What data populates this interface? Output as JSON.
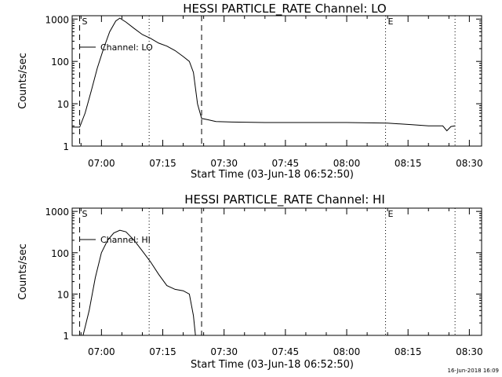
{
  "chart_data": [
    {
      "type": "line",
      "title": "HESSI PARTICLE_RATE Channel: LO",
      "xlabel": "Start Time (03-Jun-18 06:52:50)",
      "ylabel": "Counts/sec",
      "y_scale": "log",
      "x_ticks": [
        "07:00",
        "07:15",
        "07:30",
        "07:45",
        "08:00",
        "08:15",
        "08:30"
      ],
      "y_ticks": [
        "1",
        "10",
        "100",
        "1000"
      ],
      "xlim": [
        "06:52:50",
        "08:33:00"
      ],
      "ylim": [
        1,
        1200
      ],
      "legend": {
        "label": "Channel: LO",
        "placement": "top-left"
      },
      "markers": [
        {
          "time": "06:54:40",
          "style": "dashed",
          "label": "S"
        },
        {
          "time": "07:11:40",
          "style": "dotted",
          "label": ""
        },
        {
          "time": "07:24:30",
          "style": "dashed",
          "label": ""
        },
        {
          "time": "08:09:30",
          "style": "dotted",
          "label": "E"
        },
        {
          "time": "08:26:30",
          "style": "dotted",
          "label": ""
        }
      ],
      "series": [
        {
          "name": "Channel: LO",
          "x": [
            "06:52:50",
            "06:54:40",
            "06:56:00",
            "06:57:30",
            "06:59:00",
            "07:00:30",
            "07:02:00",
            "07:03:30",
            "07:04:30",
            "07:06:00",
            "07:08:00",
            "07:10:00",
            "07:12:00",
            "07:14:00",
            "07:16:00",
            "07:18:00",
            "07:20:00",
            "07:21:30",
            "07:22:30",
            "07:23:30",
            "07:24:30",
            "07:26:00",
            "07:28:00",
            "07:32:00",
            "07:40:00",
            "07:50:00",
            "08:00:00",
            "08:10:00",
            "08:16:00",
            "08:20:00",
            "08:23:30",
            "08:24:30",
            "08:25:30",
            "08:26:30"
          ],
          "y": [
            2.8,
            2.8,
            6,
            20,
            70,
            200,
            500,
            900,
            1050,
            850,
            600,
            430,
            350,
            270,
            230,
            180,
            130,
            100,
            55,
            10,
            4.5,
            4.2,
            3.8,
            3.7,
            3.6,
            3.6,
            3.6,
            3.5,
            3.2,
            3.0,
            3.0,
            2.3,
            2.9,
            3.0
          ]
        }
      ]
    },
    {
      "type": "line",
      "title": "HESSI PARTICLE_RATE Channel: HI",
      "xlabel": "Start Time (03-Jun-18 06:52:50)",
      "ylabel": "Counts/sec",
      "y_scale": "log",
      "x_ticks": [
        "07:00",
        "07:15",
        "07:30",
        "07:45",
        "08:00",
        "08:15",
        "08:30"
      ],
      "y_ticks": [
        "1",
        "10",
        "100",
        "1000"
      ],
      "xlim": [
        "06:52:50",
        "08:33:00"
      ],
      "ylim": [
        1,
        1200
      ],
      "legend": {
        "label": "Channel: HI",
        "placement": "top-left"
      },
      "markers": [
        {
          "time": "06:54:40",
          "style": "dashed",
          "label": "S"
        },
        {
          "time": "07:11:40",
          "style": "dotted",
          "label": ""
        },
        {
          "time": "07:24:30",
          "style": "dashed",
          "label": ""
        },
        {
          "time": "08:09:30",
          "style": "dotted",
          "label": "E"
        },
        {
          "time": "08:26:30",
          "style": "dotted",
          "label": ""
        }
      ],
      "series": [
        {
          "name": "Channel: HI",
          "x": [
            "06:55:30",
            "06:57:00",
            "06:58:30",
            "07:00:00",
            "07:01:30",
            "07:03:00",
            "07:04:30",
            "07:06:00",
            "07:08:00",
            "07:10:00",
            "07:12:00",
            "07:14:00",
            "07:16:00",
            "07:18:00",
            "07:20:00",
            "07:21:30",
            "07:22:30",
            "07:23:00"
          ],
          "y": [
            1,
            4,
            25,
            100,
            200,
            300,
            350,
            320,
            200,
            110,
            60,
            30,
            16,
            13,
            12,
            10,
            3,
            1
          ]
        }
      ]
    }
  ],
  "footer": {
    "timestamp": "16-Jun-2018 16:09"
  }
}
